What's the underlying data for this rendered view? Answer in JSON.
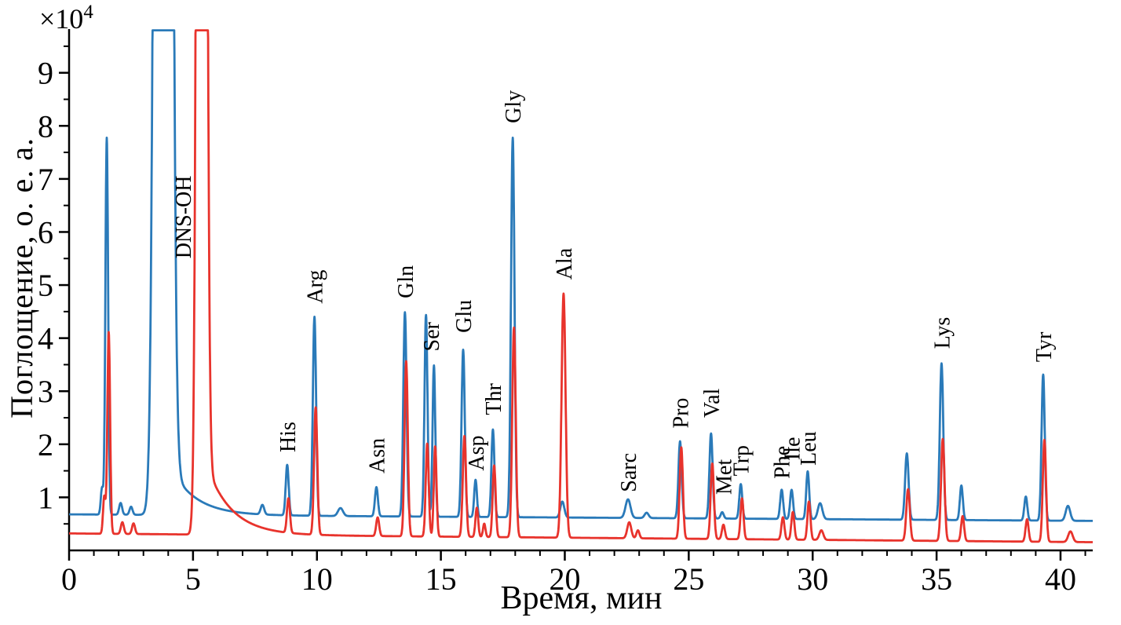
{
  "chart_data": {
    "type": "line",
    "xlabel": "Время, мин",
    "ylabel": "Поглощение, о. е. а.",
    "y_axis_multiplier": {
      "base": "×10",
      "exp": "4"
    },
    "xlim": [
      0,
      41.3
    ],
    "ylim": [
      0,
      9.75
    ],
    "x_major_ticks": [
      0,
      5,
      10,
      15,
      20,
      25,
      30,
      35,
      40
    ],
    "x_minor_step": 1,
    "y_major_ticks": [
      1,
      2,
      3,
      4,
      5,
      6,
      7,
      8,
      9
    ],
    "y_minor_step": 0.5,
    "grid": false,
    "units_note": "y values in units of 1e4 absorbance",
    "series": [
      {
        "name": "trace-blue",
        "color": "#2a7ab9",
        "baseline": {
          "start": 0.68,
          "drift": -0.003
        },
        "solvent_peak": {
          "label": "DNS-OH",
          "time": 3.8,
          "amp": 100,
          "sigma": 0.2,
          "tail_amp": 1.2,
          "tail_tau": 1.0,
          "clipped": true
        },
        "peaks": [
          {
            "t": 1.33,
            "h": 0.5,
            "w": 0.05
          },
          {
            "t": 1.52,
            "h": 7.1,
            "w": 0.055
          },
          {
            "t": 2.08,
            "h": 0.22,
            "w": 0.06
          },
          {
            "t": 2.5,
            "h": 0.15,
            "w": 0.06
          },
          {
            "t": 7.8,
            "h": 0.18,
            "w": 0.07
          },
          {
            "t": 8.8,
            "h": 0.95,
            "w": 0.06,
            "name": "His"
          },
          {
            "t": 9.9,
            "h": 3.75,
            "w": 0.065,
            "name": "Arg"
          },
          {
            "t": 10.95,
            "h": 0.15,
            "w": 0.1
          },
          {
            "t": 12.4,
            "h": 0.55,
            "w": 0.06,
            "name": "Asn"
          },
          {
            "t": 13.55,
            "h": 3.85,
            "w": 0.065,
            "name": "Gln"
          },
          {
            "t": 14.4,
            "h": 3.8,
            "w": 0.06,
            "name": "Ser"
          },
          {
            "t": 14.72,
            "h": 2.85,
            "w": 0.055
          },
          {
            "t": 15.9,
            "h": 3.15,
            "w": 0.065,
            "name": "Glu"
          },
          {
            "t": 16.4,
            "h": 0.7,
            "w": 0.055,
            "name": "Asp"
          },
          {
            "t": 17.1,
            "h": 1.65,
            "w": 0.06,
            "name": "Thr"
          },
          {
            "t": 17.9,
            "h": 7.15,
            "w": 0.07,
            "name": "Gly"
          },
          {
            "t": 19.9,
            "h": 0.3,
            "w": 0.08,
            "name": "Ala"
          },
          {
            "t": 22.55,
            "h": 0.35,
            "w": 0.1,
            "name": "Sarc"
          },
          {
            "t": 23.3,
            "h": 0.1,
            "w": 0.08
          },
          {
            "t": 24.65,
            "h": 1.45,
            "w": 0.065,
            "name": "Pro"
          },
          {
            "t": 25.9,
            "h": 1.6,
            "w": 0.065,
            "name": "Val"
          },
          {
            "t": 26.35,
            "h": 0.12,
            "w": 0.06,
            "name": "Met"
          },
          {
            "t": 27.1,
            "h": 0.65,
            "w": 0.06,
            "name": "Trp"
          },
          {
            "t": 28.75,
            "h": 0.55,
            "w": 0.06,
            "name": "Phe"
          },
          {
            "t": 29.15,
            "h": 0.55,
            "w": 0.06,
            "name": "Ile"
          },
          {
            "t": 29.8,
            "h": 0.9,
            "w": 0.06,
            "name": "Leu"
          },
          {
            "t": 30.3,
            "h": 0.3,
            "w": 0.09
          },
          {
            "t": 33.8,
            "h": 1.25,
            "w": 0.07
          },
          {
            "t": 35.2,
            "h": 2.95,
            "w": 0.07,
            "name": "Lys"
          },
          {
            "t": 36.0,
            "h": 0.65,
            "w": 0.06
          },
          {
            "t": 38.6,
            "h": 0.45,
            "w": 0.06
          },
          {
            "t": 39.3,
            "h": 2.75,
            "w": 0.065,
            "name": "Tyr"
          },
          {
            "t": 40.3,
            "h": 0.28,
            "w": 0.09
          }
        ]
      },
      {
        "name": "trace-red",
        "color": "#e8332c",
        "baseline": {
          "start": 0.32,
          "drift": -0.004
        },
        "solvent_peak": {
          "label": "DNS-OH",
          "time": 5.35,
          "amp": 60,
          "sigma": 0.13,
          "tail_amp": 1.6,
          "tail_tau": 1.0,
          "clipped": true
        },
        "peaks": [
          {
            "t": 1.42,
            "h": 0.7,
            "w": 0.05
          },
          {
            "t": 1.6,
            "h": 3.8,
            "w": 0.055
          },
          {
            "t": 2.15,
            "h": 0.22,
            "w": 0.06
          },
          {
            "t": 2.6,
            "h": 0.2,
            "w": 0.06
          },
          {
            "t": 8.85,
            "h": 0.65,
            "w": 0.06,
            "name": "His"
          },
          {
            "t": 9.95,
            "h": 2.4,
            "w": 0.065,
            "name": "Arg"
          },
          {
            "t": 12.45,
            "h": 0.35,
            "w": 0.06,
            "name": "Asn"
          },
          {
            "t": 13.6,
            "h": 3.3,
            "w": 0.065,
            "name": "Gln"
          },
          {
            "t": 14.45,
            "h": 1.75,
            "w": 0.06,
            "name": "Ser"
          },
          {
            "t": 14.77,
            "h": 1.7,
            "w": 0.055
          },
          {
            "t": 15.95,
            "h": 1.9,
            "w": 0.065,
            "name": "Glu"
          },
          {
            "t": 16.45,
            "h": 0.55,
            "w": 0.055,
            "name": "Asp"
          },
          {
            "t": 16.75,
            "h": 0.25,
            "w": 0.05
          },
          {
            "t": 17.15,
            "h": 1.35,
            "w": 0.06,
            "name": "Thr"
          },
          {
            "t": 17.95,
            "h": 3.95,
            "w": 0.07,
            "name": "Gly"
          },
          {
            "t": 19.95,
            "h": 4.6,
            "w": 0.08,
            "name": "Ala"
          },
          {
            "t": 22.6,
            "h": 0.3,
            "w": 0.08,
            "name": "Sarc"
          },
          {
            "t": 22.95,
            "h": 0.15,
            "w": 0.06
          },
          {
            "t": 24.7,
            "h": 1.72,
            "w": 0.065,
            "name": "Pro"
          },
          {
            "t": 25.95,
            "h": 1.42,
            "w": 0.065,
            "name": "Val"
          },
          {
            "t": 26.4,
            "h": 0.27,
            "w": 0.06,
            "name": "Met"
          },
          {
            "t": 27.15,
            "h": 0.77,
            "w": 0.06,
            "name": "Trp"
          },
          {
            "t": 28.8,
            "h": 0.42,
            "w": 0.06,
            "name": "Phe"
          },
          {
            "t": 29.2,
            "h": 0.52,
            "w": 0.06,
            "name": "Ile"
          },
          {
            "t": 29.85,
            "h": 0.72,
            "w": 0.06,
            "name": "Leu"
          },
          {
            "t": 30.35,
            "h": 0.18,
            "w": 0.08
          },
          {
            "t": 33.85,
            "h": 0.97,
            "w": 0.07
          },
          {
            "t": 35.25,
            "h": 1.92,
            "w": 0.07,
            "name": "Lys"
          },
          {
            "t": 36.05,
            "h": 0.47,
            "w": 0.06
          },
          {
            "t": 38.65,
            "h": 0.42,
            "w": 0.06
          },
          {
            "t": 39.35,
            "h": 1.92,
            "w": 0.065,
            "name": "Tyr"
          },
          {
            "t": 40.4,
            "h": 0.2,
            "w": 0.09
          }
        ]
      }
    ],
    "peak_labels": [
      {
        "text": "DNS-OH",
        "t": 4.6,
        "y": 5.5
      },
      {
        "text": "His",
        "t": 8.8,
        "y": 1.85
      },
      {
        "text": "Arg",
        "t": 9.9,
        "y": 4.65
      },
      {
        "text": "Asn",
        "t": 12.4,
        "y": 1.45
      },
      {
        "text": "Gln",
        "t": 13.55,
        "y": 4.75
      },
      {
        "text": "Ser",
        "t": 14.6,
        "y": 3.75
      },
      {
        "text": "Glu",
        "t": 15.9,
        "y": 4.1
      },
      {
        "text": "Asp",
        "t": 16.4,
        "y": 1.5
      },
      {
        "text": "Thr",
        "t": 17.1,
        "y": 2.55
      },
      {
        "text": "Gly",
        "t": 17.9,
        "y": 8.05
      },
      {
        "text": "Ala",
        "t": 19.95,
        "y": 5.1
      },
      {
        "text": "Sarc",
        "t": 22.55,
        "y": 1.1
      },
      {
        "text": "Pro",
        "t": 24.65,
        "y": 2.3
      },
      {
        "text": "Val",
        "t": 25.9,
        "y": 2.5
      },
      {
        "text": "Met",
        "t": 26.4,
        "y": 1.05
      },
      {
        "text": "Trp",
        "t": 27.1,
        "y": 1.4
      },
      {
        "text": "Phe",
        "t": 28.75,
        "y": 1.35
      },
      {
        "text": "Ile",
        "t": 29.15,
        "y": 1.7
      },
      {
        "text": "Leu",
        "t": 29.8,
        "y": 1.6
      },
      {
        "text": "Lys",
        "t": 35.2,
        "y": 3.8
      },
      {
        "text": "Tyr",
        "t": 39.3,
        "y": 3.55
      }
    ]
  }
}
